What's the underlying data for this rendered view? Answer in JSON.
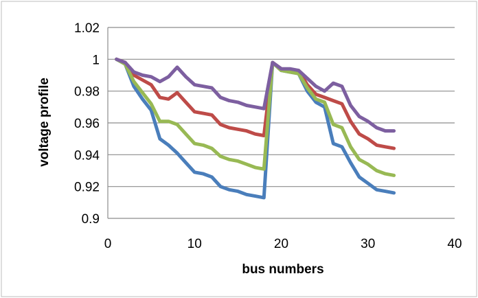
{
  "chart_data": {
    "type": "line",
    "title": "",
    "xlabel": "bus numbers",
    "ylabel": "voltage profile",
    "xlim": [
      0,
      40
    ],
    "ylim": [
      0.9,
      1.02
    ],
    "x_ticks": [
      0,
      10,
      20,
      30,
      40
    ],
    "y_ticks": [
      0.9,
      0.92,
      0.94,
      0.96,
      0.98,
      1,
      1.02
    ],
    "x_tick_labels": [
      "0",
      "10",
      "20",
      "30",
      "40"
    ],
    "y_tick_labels": [
      "0.9",
      "0.92",
      "0.94",
      "0.96",
      "0.98",
      "1",
      "1.02"
    ],
    "grid": "horizontal",
    "legend": "none",
    "x": [
      1,
      2,
      3,
      4,
      5,
      6,
      7,
      8,
      9,
      10,
      11,
      12,
      13,
      14,
      15,
      16,
      17,
      18,
      19,
      20,
      21,
      22,
      23,
      24,
      25,
      26,
      27,
      28,
      29,
      30,
      31,
      32,
      33
    ],
    "series": [
      {
        "color": "#4a7ebb",
        "values": [
          1.0,
          0.997,
          0.983,
          0.975,
          0.968,
          0.95,
          0.946,
          0.941,
          0.935,
          0.929,
          0.928,
          0.926,
          0.92,
          0.918,
          0.917,
          0.915,
          0.914,
          0.913,
          0.998,
          0.993,
          0.992,
          0.991,
          0.98,
          0.973,
          0.97,
          0.947,
          0.945,
          0.935,
          0.926,
          0.922,
          0.918,
          0.917,
          0.916
        ]
      },
      {
        "color": "#be4b48",
        "values": [
          1.0,
          0.998,
          0.99,
          0.987,
          0.984,
          0.976,
          0.975,
          0.979,
          0.973,
          0.967,
          0.966,
          0.965,
          0.959,
          0.957,
          0.956,
          0.955,
          0.953,
          0.952,
          0.998,
          0.994,
          0.993,
          0.993,
          0.984,
          0.978,
          0.976,
          0.974,
          0.972,
          0.961,
          0.953,
          0.95,
          0.946,
          0.945,
          0.944
        ]
      },
      {
        "color": "#98b954",
        "values": [
          1.0,
          0.997,
          0.986,
          0.979,
          0.972,
          0.961,
          0.961,
          0.959,
          0.953,
          0.947,
          0.946,
          0.944,
          0.939,
          0.937,
          0.936,
          0.934,
          0.932,
          0.931,
          0.998,
          0.993,
          0.992,
          0.991,
          0.982,
          0.975,
          0.973,
          0.959,
          0.957,
          0.945,
          0.937,
          0.934,
          0.93,
          0.928,
          0.927
        ]
      },
      {
        "color": "#7d5fa0",
        "values": [
          1.0,
          0.998,
          0.992,
          0.99,
          0.989,
          0.986,
          0.989,
          0.995,
          0.989,
          0.984,
          0.983,
          0.982,
          0.976,
          0.974,
          0.973,
          0.971,
          0.97,
          0.969,
          0.998,
          0.994,
          0.994,
          0.993,
          0.988,
          0.983,
          0.98,
          0.985,
          0.983,
          0.971,
          0.964,
          0.961,
          0.957,
          0.955,
          0.955
        ]
      }
    ]
  }
}
